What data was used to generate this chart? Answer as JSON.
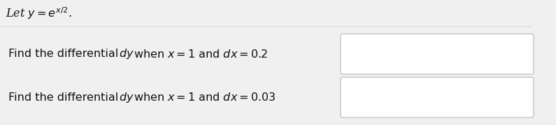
{
  "title_text": "Let $y = e^{x/2}$.",
  "line1_prefix": "Find the differential ",
  "line1_dy": "dy",
  "line1_suffix": " when $x = 1$ and $dx = 0.2$",
  "line2_prefix": "Find the differential ",
  "line2_dy": "dy",
  "line2_suffix": " when $x = 1$ and $dx = 0.03$",
  "bg_color": "#f0f0f0",
  "title_bg": "#e8e8e8",
  "body_bg": "#ffffff",
  "box_bg": "#ffffff",
  "box_edge": "#cccccc",
  "text_color": "#111111",
  "font_size_title": 11.5,
  "font_size_body": 11.5,
  "fig_width": 7.95,
  "fig_height": 1.8,
  "dpi": 100
}
